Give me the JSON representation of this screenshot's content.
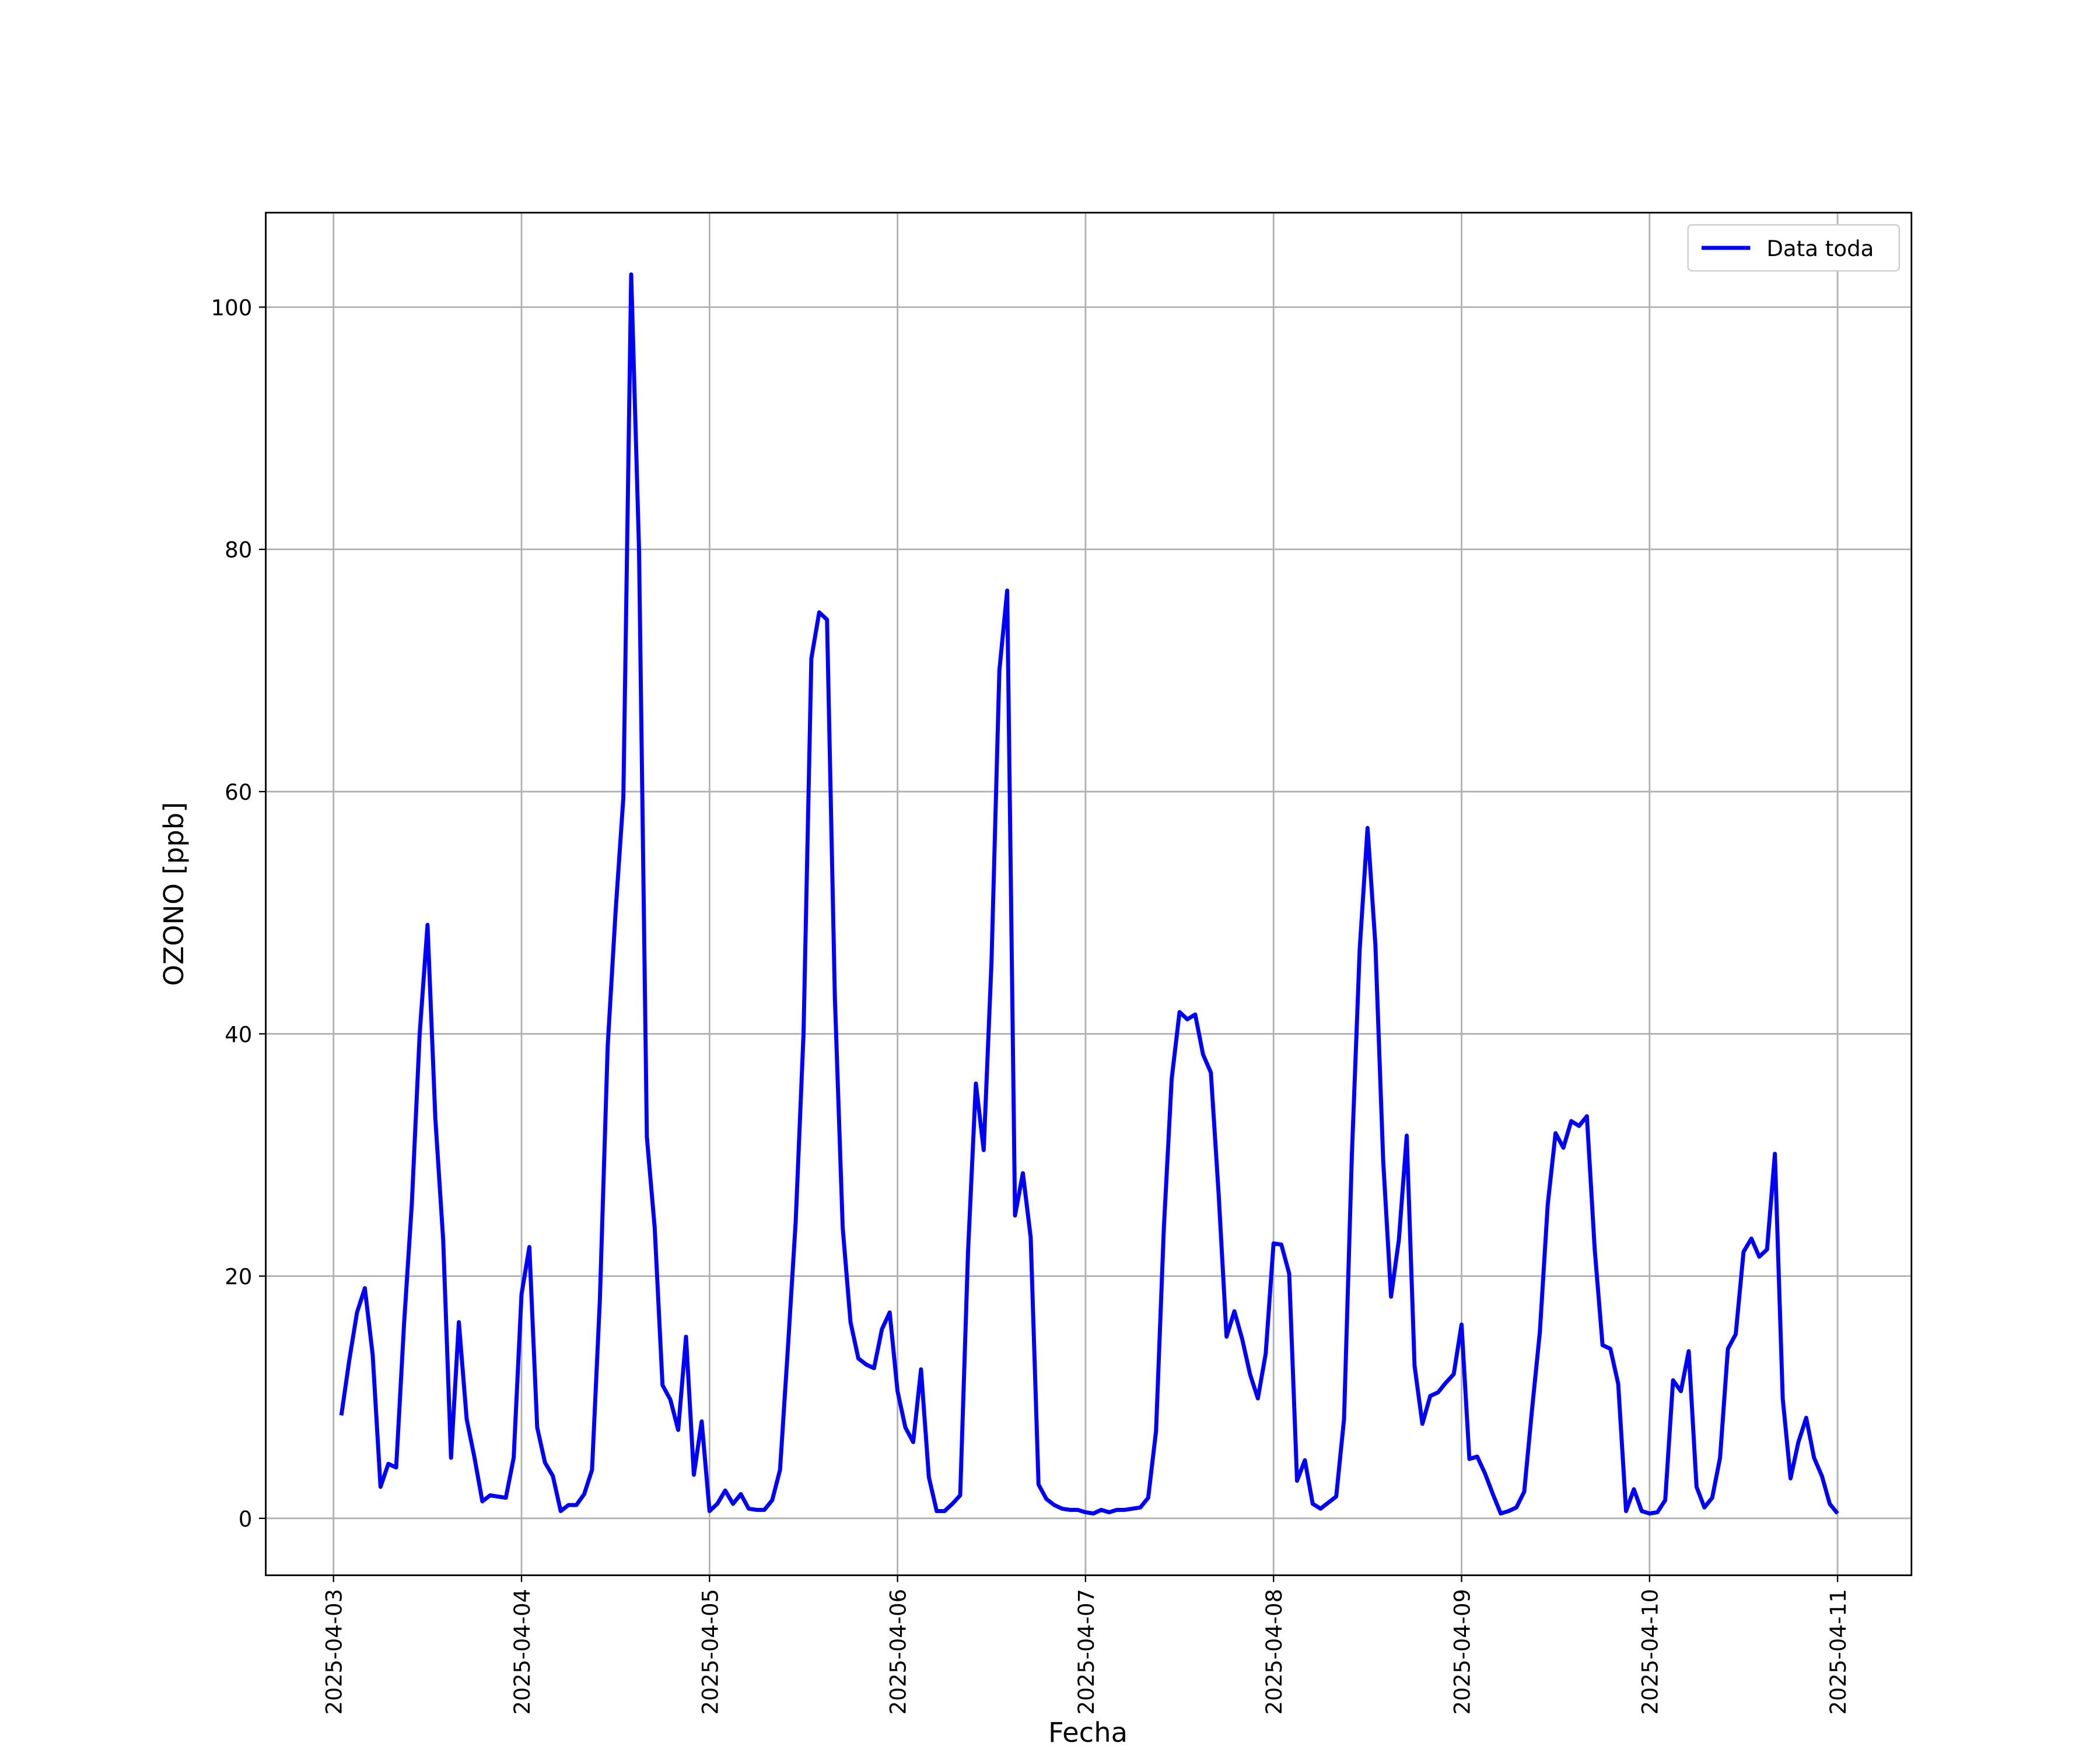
{
  "chart_data": {
    "type": "line",
    "xlabel": "Fecha",
    "ylabel": "OZONO [ppb]",
    "x": [
      "2025-04-03 01:00",
      "2025-04-03 02:00",
      "2025-04-03 03:00",
      "2025-04-03 04:00",
      "2025-04-03 05:00",
      "2025-04-03 06:00",
      "2025-04-03 07:00",
      "2025-04-03 08:00",
      "2025-04-03 09:00",
      "2025-04-03 10:00",
      "2025-04-03 11:00",
      "2025-04-03 12:00",
      "2025-04-03 13:00",
      "2025-04-03 14:00",
      "2025-04-03 15:00",
      "2025-04-03 16:00",
      "2025-04-03 17:00",
      "2025-04-03 18:00",
      "2025-04-03 19:00",
      "2025-04-03 20:00",
      "2025-04-03 21:00",
      "2025-04-03 22:00",
      "2025-04-03 23:00",
      "2025-04-04 00:00",
      "2025-04-04 01:00",
      "2025-04-04 02:00",
      "2025-04-04 03:00",
      "2025-04-04 04:00",
      "2025-04-04 05:00",
      "2025-04-04 06:00",
      "2025-04-04 07:00",
      "2025-04-04 08:00",
      "2025-04-04 09:00",
      "2025-04-04 10:00",
      "2025-04-04 11:00",
      "2025-04-04 12:00",
      "2025-04-04 13:00",
      "2025-04-04 14:00",
      "2025-04-04 15:00",
      "2025-04-04 16:00",
      "2025-04-04 17:00",
      "2025-04-04 18:00",
      "2025-04-04 19:00",
      "2025-04-04 20:00",
      "2025-04-04 21:00",
      "2025-04-04 22:00",
      "2025-04-04 23:00",
      "2025-04-05 00:00",
      "2025-04-05 01:00",
      "2025-04-05 02:00",
      "2025-04-05 03:00",
      "2025-04-05 04:00",
      "2025-04-05 05:00",
      "2025-04-05 06:00",
      "2025-04-05 07:00",
      "2025-04-05 08:00",
      "2025-04-05 09:00",
      "2025-04-05 10:00",
      "2025-04-05 11:00",
      "2025-04-05 12:00",
      "2025-04-05 13:00",
      "2025-04-05 14:00",
      "2025-04-05 15:00",
      "2025-04-05 16:00",
      "2025-04-05 17:00",
      "2025-04-05 18:00",
      "2025-04-05 19:00",
      "2025-04-05 20:00",
      "2025-04-05 21:00",
      "2025-04-05 22:00",
      "2025-04-05 23:00",
      "2025-04-06 00:00",
      "2025-04-06 01:00",
      "2025-04-06 02:00",
      "2025-04-06 03:00",
      "2025-04-06 04:00",
      "2025-04-06 05:00",
      "2025-04-06 06:00",
      "2025-04-06 07:00",
      "2025-04-06 08:00",
      "2025-04-06 09:00",
      "2025-04-06 10:00",
      "2025-04-06 11:00",
      "2025-04-06 12:00",
      "2025-04-06 13:00",
      "2025-04-06 14:00",
      "2025-04-06 15:00",
      "2025-04-06 16:00",
      "2025-04-06 17:00",
      "2025-04-06 18:00",
      "2025-04-06 19:00",
      "2025-04-06 20:00",
      "2025-04-06 21:00",
      "2025-04-06 22:00",
      "2025-04-06 23:00",
      "2025-04-07 00:00",
      "2025-04-07 01:00",
      "2025-04-07 02:00",
      "2025-04-07 03:00",
      "2025-04-07 04:00",
      "2025-04-07 05:00",
      "2025-04-07 06:00",
      "2025-04-07 07:00",
      "2025-04-07 08:00",
      "2025-04-07 09:00",
      "2025-04-07 10:00",
      "2025-04-07 11:00",
      "2025-04-07 12:00",
      "2025-04-07 13:00",
      "2025-04-07 14:00",
      "2025-04-07 15:00",
      "2025-04-07 16:00",
      "2025-04-07 17:00",
      "2025-04-07 18:00",
      "2025-04-07 19:00",
      "2025-04-07 20:00",
      "2025-04-07 21:00",
      "2025-04-07 22:00",
      "2025-04-07 23:00",
      "2025-04-08 00:00",
      "2025-04-08 01:00",
      "2025-04-08 02:00",
      "2025-04-08 03:00",
      "2025-04-08 04:00",
      "2025-04-08 05:00",
      "2025-04-08 06:00",
      "2025-04-08 07:00",
      "2025-04-08 08:00",
      "2025-04-08 09:00",
      "2025-04-08 10:00",
      "2025-04-08 11:00",
      "2025-04-08 12:00",
      "2025-04-08 13:00",
      "2025-04-08 14:00",
      "2025-04-08 15:00",
      "2025-04-08 16:00",
      "2025-04-08 17:00",
      "2025-04-08 18:00",
      "2025-04-08 19:00",
      "2025-04-08 20:00",
      "2025-04-08 21:00",
      "2025-04-08 22:00",
      "2025-04-08 23:00",
      "2025-04-09 00:00",
      "2025-04-09 01:00",
      "2025-04-09 02:00",
      "2025-04-09 03:00",
      "2025-04-09 04:00",
      "2025-04-09 05:00",
      "2025-04-09 06:00",
      "2025-04-09 07:00",
      "2025-04-09 08:00",
      "2025-04-09 09:00",
      "2025-04-09 10:00",
      "2025-04-09 11:00",
      "2025-04-09 12:00",
      "2025-04-09 13:00",
      "2025-04-09 14:00",
      "2025-04-09 15:00",
      "2025-04-09 16:00",
      "2025-04-09 17:00",
      "2025-04-09 18:00",
      "2025-04-09 19:00",
      "2025-04-09 20:00",
      "2025-04-09 21:00",
      "2025-04-09 22:00",
      "2025-04-09 23:00",
      "2025-04-10 00:00",
      "2025-04-10 01:00",
      "2025-04-10 02:00",
      "2025-04-10 03:00",
      "2025-04-10 04:00",
      "2025-04-10 05:00",
      "2025-04-10 06:00",
      "2025-04-10 07:00",
      "2025-04-10 08:00",
      "2025-04-10 09:00",
      "2025-04-10 10:00",
      "2025-04-10 11:00",
      "2025-04-10 12:00",
      "2025-04-10 13:00",
      "2025-04-10 14:00",
      "2025-04-10 15:00",
      "2025-04-10 16:00",
      "2025-04-10 17:00",
      "2025-04-10 18:00",
      "2025-04-10 19:00",
      "2025-04-10 20:00",
      "2025-04-10 21:00",
      "2025-04-10 22:00",
      "2025-04-10 23:00",
      "2025-04-11 00:00"
    ],
    "series": [
      {
        "name": "Data toda",
        "color": "#0000ff",
        "values": [
          8.5,
          13,
          17,
          19,
          13.5,
          2.6,
          4.5,
          4.2,
          16,
          26,
          40,
          49,
          33,
          23,
          5,
          16.2,
          8.2,
          5,
          1.4,
          1.9,
          1.8,
          1.7,
          5,
          18.5,
          22.4,
          7.5,
          4.6,
          3.5,
          0.6,
          1.1,
          1.1,
          2,
          4,
          18,
          39,
          50,
          59.5,
          102.7,
          80,
          31.5,
          24,
          11,
          9.8,
          7.3,
          15,
          3.6,
          8,
          0.6,
          1.2,
          2.3,
          1.2,
          2,
          0.8,
          0.7,
          0.7,
          1.5,
          4,
          14,
          24.5,
          40,
          71,
          74.8,
          74.2,
          43,
          24,
          16.2,
          13.2,
          12.7,
          12.4,
          15.6,
          17,
          10.5,
          7.5,
          6.3,
          12.3,
          3.4,
          0.6,
          0.6,
          1.2,
          1.9,
          22,
          35.9,
          30.4,
          46,
          70,
          76.6,
          25,
          28.5,
          23.2,
          2.8,
          1.6,
          1.1,
          0.8,
          0.7,
          0.7,
          0.5,
          0.4,
          0.7,
          0.5,
          0.7,
          0.7,
          0.8,
          0.9,
          1.7,
          7.2,
          24,
          36.3,
          41.8,
          41.2,
          41.6,
          38.3,
          36.8,
          26.7,
          15,
          17.1,
          14.8,
          11.9,
          9.9,
          13.6,
          22.7,
          22.6,
          20.2,
          3.1,
          4.8,
          1.2,
          0.8,
          1.3,
          1.8,
          8.2,
          30,
          47,
          57,
          47.4,
          29.5,
          18.3,
          23,
          31.6,
          12.6,
          7.8,
          10.1,
          10.4,
          11.2,
          11.9,
          16,
          4.9,
          5.1,
          3.7,
          2,
          0.4,
          0.6,
          0.9,
          2.2,
          9,
          15.4,
          25.9,
          31.8,
          30.6,
          32.8,
          32.4,
          33.2,
          22.2,
          14.3,
          14,
          11.1,
          0.6,
          2.4,
          0.6,
          0.4,
          0.5,
          1.5,
          11.4,
          10.5,
          13.8,
          2.6,
          0.9,
          1.7,
          5,
          14,
          15.2,
          22,
          23.1,
          21.6,
          22.2,
          30.1,
          9.9,
          3.3,
          6.3,
          8.3,
          5,
          3.5,
          1.2,
          0.4
        ]
      }
    ],
    "xlim": [
      "2025-04-02 15:21",
      "2025-04-11 09:26"
    ],
    "xticks": [
      "2025-04-03",
      "2025-04-04",
      "2025-04-05",
      "2025-04-06",
      "2025-04-07",
      "2025-04-08",
      "2025-04-09",
      "2025-04-10",
      "2025-04-11"
    ],
    "ylim": [
      -4.7,
      107.8
    ],
    "yticks": [
      0,
      20,
      40,
      60,
      80,
      100
    ],
    "grid": true,
    "legend": "upper right"
  }
}
